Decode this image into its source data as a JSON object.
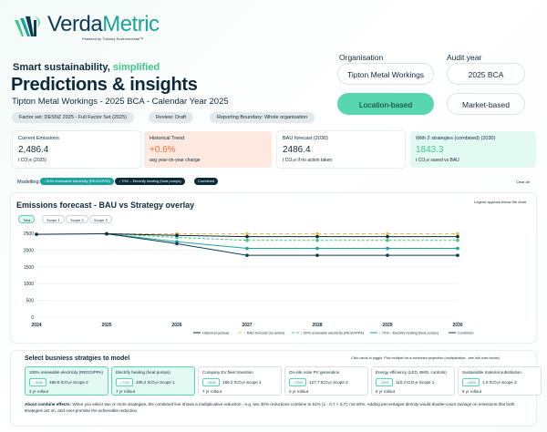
{
  "brand": {
    "name_part1": "Verda",
    "name_part2": "Metric",
    "powered": "Powered by Turnkey Environmental™"
  },
  "tagline": {
    "part1": "Smart sustainability, ",
    "part2": "simplified"
  },
  "title": "Predictions & insights",
  "subtitle": "Tipton Metal Workings - 2025 BCA - Calendar Year 2025",
  "meta_pills": [
    "Factor set: DESNZ 2025 - Full Factor Set (2025)",
    "Review: Draft",
    "Reporting Boundary: Whole organisation"
  ],
  "org": {
    "label": "Organisation",
    "value": "Tipton Metal Workings"
  },
  "audit": {
    "label": "Audit year",
    "value": "2025 BCA"
  },
  "basis": {
    "location": "Location-based",
    "market": "Market-based"
  },
  "kpis": [
    {
      "label": "Current Emissions",
      "value": "2,486.4",
      "sub": "t CO₂e (2025)"
    },
    {
      "label": "Historical Trend",
      "value": "+0.6%",
      "sub": "avg year-on-year change"
    },
    {
      "label": "BAU forecast (2030)",
      "value": "2486.4",
      "sub": "t CO₂e if no action taken"
    },
    {
      "label": "With 2 strategies (combined) (2030)",
      "value": "1843.3",
      "sub": "t CO₂e saved vs BAU"
    }
  ],
  "modelling": {
    "label": "Modelling:",
    "tags": [
      "↓ 50% renewable electricity (REGO/PPA)",
      "↓ 70% – Electrify heating (heat pumps)",
      "Combined"
    ],
    "clear": "Clear all"
  },
  "chart_card": {
    "title": "Emissions forecast - BAU vs Strategy overlay",
    "legend_note": "Legend appears below the chart",
    "scope_tabs": [
      "Total",
      "Scope 1",
      "Scope 2",
      "Scope 3"
    ]
  },
  "chart_data": {
    "type": "line",
    "x": [
      2024,
      2025,
      2026,
      2027,
      2028,
      2029,
      2030
    ],
    "ylim": [
      0,
      2500
    ],
    "yticks": [
      0,
      500,
      1000,
      1500,
      2000,
      2500
    ],
    "series": [
      {
        "name": "Historical (actual)",
        "x": [
          2024,
          2025
        ],
        "values": [
          2470,
          2486
        ],
        "color": "#0d2a3a",
        "dash": ""
      },
      {
        "name": "BAU forecast (no action)",
        "x": [
          2025,
          2026,
          2027,
          2028,
          2029,
          2030
        ],
        "values": [
          2486,
          2486,
          2486,
          2486,
          2486,
          2486
        ],
        "color": "#f2b84b",
        "dash": "4 3"
      },
      {
        "name": "↓ 50% renewable electricity (REGO/PPA)",
        "x": [
          2025,
          2026,
          2027,
          2028,
          2029,
          2030
        ],
        "values": [
          2486,
          2380,
          2290,
          2290,
          2290,
          2290
        ],
        "color": "#3ec98a",
        "dash": "3 2"
      },
      {
        "name": "↓ 70% – Electrify heating (heat pumps)",
        "x": [
          2025,
          2026,
          2027,
          2028,
          2029,
          2030
        ],
        "values": [
          2486,
          2250,
          2050,
          2050,
          2050,
          2050
        ],
        "color": "#1ba39c",
        "dash": ""
      },
      {
        "name": "Combined",
        "x": [
          2025,
          2026,
          2027,
          2028,
          2029,
          2030
        ],
        "values": [
          2486,
          2190,
          1843,
          1843,
          1843,
          1843
        ],
        "color": "#0d3b54",
        "dash": ""
      },
      {
        "name": "",
        "x": [
          2025,
          2026,
          2027,
          2028,
          2029,
          2030
        ],
        "values": [
          2486,
          2440,
          2400,
          2400,
          2400,
          2400
        ],
        "color": "#0d2a3a",
        "dash": ""
      }
    ]
  },
  "strategies": {
    "title": "Select busniess stratgies to model",
    "hint": "Click cards to toggle. Pick multiple for a combined projection (multiplicative - see info note below)",
    "cards": [
      {
        "title": "100% renewable electricity (REGO/PPA)",
        "badge": "↓ 50%",
        "co2": "499.8 tCO₂e Scope 2",
        "rollout": "2 yr rollout",
        "selected": true
      },
      {
        "title": "Electrify heating (heat pumps)",
        "badge": "↓ 70%",
        "co2": "206.2 tCO₂e Scope 1",
        "rollout": "7 yr rollout",
        "selected": true
      },
      {
        "title": "Company EV fleet transition",
        "badge": "↓ 80%",
        "co2": "169.2 tCO₂e Scope 1",
        "rollout": "7 yr rollout",
        "selected": false
      },
      {
        "title": "On-site solar PV generation",
        "badge": "↓ 25%",
        "co2": "127.7 tCO₂e Scope 2",
        "rollout": "3 yr rollout",
        "selected": false
      },
      {
        "title": "Energy efficiency (LED, BMS, controls)",
        "badge": "↓ 60%",
        "co2": "110.2 tCO₂e Scope 1",
        "rollout": "5 yr rollout",
        "selected": false
      },
      {
        "title": "Sustainable material substitution",
        "badge": "↓ 40%",
        "co2": "1.0 tCO₂e Scope 3",
        "rollout": "6 yr rollout",
        "selected": false
      }
    ]
  },
  "info": {
    "bold": "About combine effects:",
    "text": " When you select two or more strategies, the combined line shows a multiplicative reduction - e.g. two 30% reductions combine to 51% (1 - 0.7 × 0.7), not 60%. Adding percentages directly would double-count savings on emissions that both strategies act on, and over-promise the achievable reduction."
  }
}
